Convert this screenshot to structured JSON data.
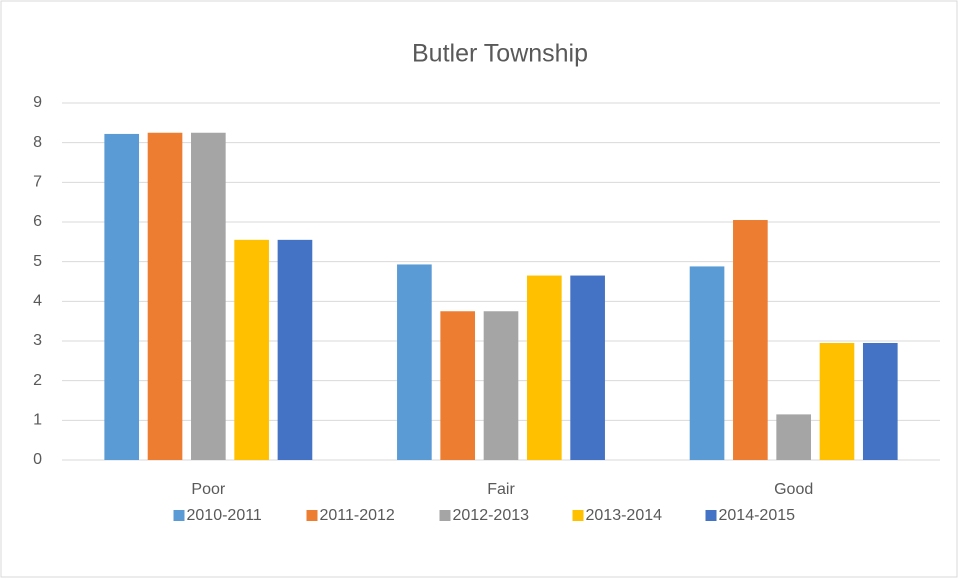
{
  "chart_data": {
    "type": "bar",
    "title": "Butler Township",
    "categories": [
      "Poor",
      "Fair",
      "Good"
    ],
    "series": [
      {
        "name": "2010-2011",
        "color": "#5b9bd5",
        "values": [
          8.22,
          4.93,
          4.88
        ]
      },
      {
        "name": "2011-2012",
        "color": "#ed7d31",
        "values": [
          8.25,
          3.75,
          6.05
        ]
      },
      {
        "name": "2012-2013",
        "color": "#a5a5a5",
        "values": [
          8.25,
          3.75,
          1.15
        ]
      },
      {
        "name": "2013-2014",
        "color": "#ffc000",
        "values": [
          5.55,
          4.65,
          2.95
        ]
      },
      {
        "name": "2014-2015",
        "color": "#4472c4",
        "values": [
          5.55,
          4.65,
          2.95
        ]
      }
    ],
    "ylim": [
      0,
      9
    ],
    "yticks": [
      0,
      1,
      2,
      3,
      4,
      5,
      6,
      7,
      8,
      9
    ],
    "grid": true,
    "legend": "bottom"
  }
}
